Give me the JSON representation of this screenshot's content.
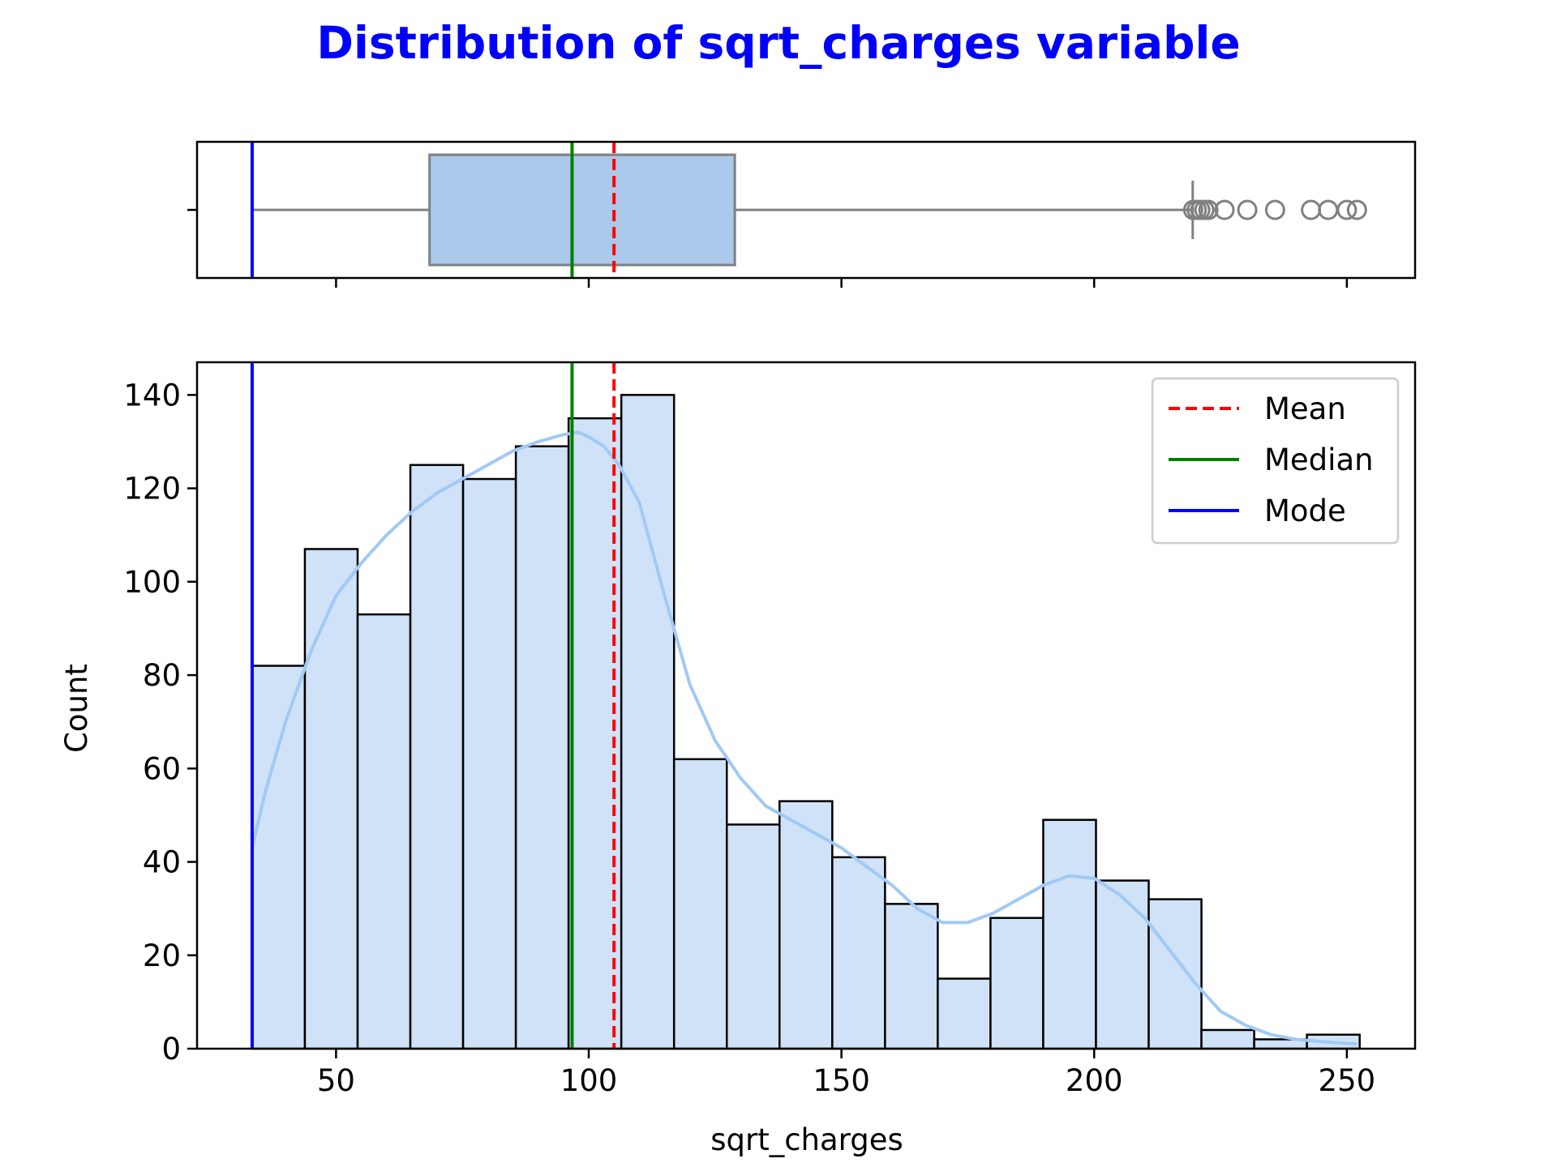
{
  "chart_data": {
    "type": "bar",
    "title": "Distribution of sqrt_charges variable",
    "title_color": "#0000ff",
    "xlabel": "sqrt_charges",
    "ylabel": "Count",
    "xlim": [
      22.5,
      263.5
    ],
    "ylim": [
      0,
      147
    ],
    "x_ticks": [
      50,
      100,
      150,
      200,
      250
    ],
    "y_ticks": [
      0,
      20,
      40,
      60,
      80,
      100,
      120,
      140
    ],
    "bar_fill": "#cfe2f7",
    "bar_edge": "#000000",
    "kde_color": "#a1c9f4",
    "histogram": {
      "bin_start": 33.4,
      "bin_width": 10.435,
      "counts": [
        82,
        107,
        93,
        125,
        122,
        129,
        135,
        140,
        62,
        48,
        53,
        41,
        31,
        15,
        28,
        49,
        36,
        32,
        4,
        2,
        3
      ]
    },
    "kde": {
      "x": [
        33.4,
        36,
        40,
        45,
        50,
        55,
        60,
        65,
        70,
        75,
        80,
        85,
        90,
        95,
        98,
        100,
        103,
        106,
        110,
        115,
        120,
        125,
        130,
        135,
        140,
        145,
        150,
        155,
        160,
        165,
        170,
        175,
        180,
        185,
        190,
        195,
        200,
        205,
        210,
        215,
        220,
        225,
        230,
        235,
        240,
        245,
        252
      ],
      "y": [
        43,
        55,
        70,
        85,
        97,
        104,
        110,
        115,
        119,
        122,
        125,
        128,
        130,
        131.5,
        132,
        131,
        129,
        125,
        117,
        97,
        78,
        66,
        58,
        52,
        49,
        46,
        43,
        39,
        35,
        30,
        27,
        27,
        29,
        32,
        35,
        37,
        36.5,
        33,
        28,
        21,
        14,
        8,
        5,
        3,
        2,
        1.5,
        1
      ]
    },
    "statistics": [
      {
        "name": "Mean",
        "value": 105.0,
        "color": "#ff0000",
        "style": "dashed"
      },
      {
        "name": "Median",
        "value": 96.7,
        "color": "#008000",
        "style": "solid"
      },
      {
        "name": "Mode",
        "value": 33.4,
        "color": "#0000ff",
        "style": "solid"
      }
    ],
    "boxplot": {
      "min": 33.4,
      "q1": 68.5,
      "median": 96.7,
      "q3": 128.9,
      "whisker_high": 219.5,
      "outliers": [
        219.6,
        220.3,
        221.0,
        221.8,
        222.6,
        225.8,
        230.3,
        235.8,
        242.9,
        246.3,
        250.0,
        252.0
      ],
      "box_fill": "#abc9eb",
      "line_color": "#808080"
    },
    "legend": {
      "position": "top-right",
      "entries": [
        "Mean",
        "Median",
        "Mode"
      ]
    },
    "grid": false
  }
}
